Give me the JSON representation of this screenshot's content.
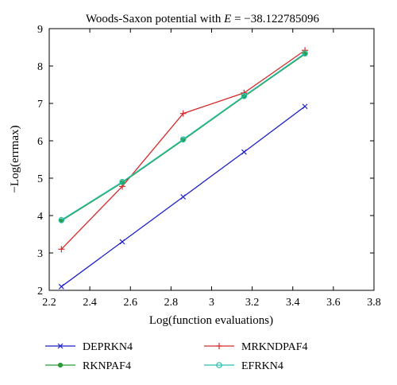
{
  "chart_data": {
    "type": "line",
    "title_prefix": "Woods-Saxon potential with ",
    "title_var": "E",
    "title_suffix": " = −38.122785096",
    "xlabel": "Log(function evaluations)",
    "ylabel": "−Log(errmax)",
    "xlim": [
      2.2,
      3.8
    ],
    "ylim": [
      2,
      9
    ],
    "xticks": [
      "2.2",
      "2.4",
      "2.6",
      "2.8",
      "3",
      "3.2",
      "3.4",
      "3.6",
      "3.8"
    ],
    "yticks": [
      "2",
      "3",
      "4",
      "5",
      "6",
      "7",
      "8",
      "9"
    ],
    "grid": false,
    "legend_position": "below",
    "series": [
      {
        "name": "DEPRKN4",
        "color": "#1f1fc8",
        "marker": "x",
        "x": [
          2.26,
          2.56,
          2.86,
          3.16,
          3.46
        ],
        "y": [
          2.1,
          3.3,
          4.5,
          5.7,
          6.92
        ]
      },
      {
        "name": "MRKNDPAF4",
        "color": "#d42a2a",
        "marker": "plus",
        "x": [
          2.26,
          2.56,
          2.86,
          3.16,
          3.46
        ],
        "y": [
          3.1,
          4.78,
          6.73,
          7.28,
          8.42
        ]
      },
      {
        "name": "RKNPAF4",
        "color": "#2a9a3a",
        "marker": "dot",
        "x": [
          2.26,
          2.56,
          2.86,
          3.16,
          3.46
        ],
        "y": [
          3.86,
          4.88,
          6.02,
          7.18,
          8.32
        ]
      },
      {
        "name": "EFRKN4",
        "color": "#26bfae",
        "marker": "circle",
        "x": [
          2.26,
          2.56,
          2.86,
          3.16,
          3.46
        ],
        "y": [
          3.88,
          4.9,
          6.04,
          7.2,
          8.34
        ]
      }
    ]
  }
}
